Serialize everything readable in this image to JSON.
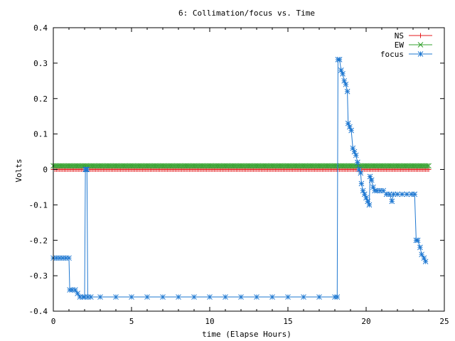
{
  "chart_data": {
    "type": "line",
    "title": "6: Collimation/focus vs. Time",
    "xlabel": "time (Elapse Hours)",
    "ylabel": "Volts",
    "xlim": [
      0,
      25
    ],
    "ylim": [
      -0.4,
      0.4
    ],
    "x_ticks": [
      0,
      5,
      10,
      15,
      20,
      25
    ],
    "x_tick_labels": [
      "0",
      "5",
      "10",
      "15",
      "20",
      "25"
    ],
    "y_ticks": [
      -0.4,
      -0.3,
      -0.2,
      -0.1,
      0,
      0.1,
      0.2,
      0.3,
      0.4
    ],
    "y_tick_labels": [
      "-0.4",
      "-0.3",
      "-0.2",
      "-0.1",
      "0",
      "0.1",
      "0.2",
      "0.3",
      "0.4"
    ],
    "grid": false,
    "legend_position": "top-right",
    "series": [
      {
        "name": "NS",
        "color": "#e41a1c",
        "marker": "plus",
        "x_start": 0,
        "x_end": 24,
        "x_step": 0.1,
        "constant_value": 0.0
      },
      {
        "name": "EW",
        "color": "#33a02c",
        "marker": "cross",
        "x_start": 0,
        "x_end": 24,
        "x_step": 0.1,
        "constant_value": 0.01
      },
      {
        "name": "focus",
        "color": "#1f78d1",
        "marker": "star",
        "points": [
          [
            0.0,
            -0.25
          ],
          [
            0.2,
            -0.25
          ],
          [
            0.4,
            -0.25
          ],
          [
            0.6,
            -0.25
          ],
          [
            0.8,
            -0.25
          ],
          [
            1.0,
            -0.25
          ],
          [
            1.05,
            -0.34
          ],
          [
            1.2,
            -0.34
          ],
          [
            1.4,
            -0.34
          ],
          [
            1.55,
            -0.35
          ],
          [
            1.7,
            -0.36
          ],
          [
            1.9,
            -0.36
          ],
          [
            2.0,
            -0.36
          ],
          [
            2.05,
            0.0
          ],
          [
            2.1,
            0.0
          ],
          [
            2.15,
            0.0
          ],
          [
            2.2,
            -0.36
          ],
          [
            2.4,
            -0.36
          ],
          [
            3.0,
            -0.36
          ],
          [
            4.0,
            -0.36
          ],
          [
            5.0,
            -0.36
          ],
          [
            6.0,
            -0.36
          ],
          [
            7.0,
            -0.36
          ],
          [
            8.0,
            -0.36
          ],
          [
            9.0,
            -0.36
          ],
          [
            10.0,
            -0.36
          ],
          [
            11.0,
            -0.36
          ],
          [
            12.0,
            -0.36
          ],
          [
            13.0,
            -0.36
          ],
          [
            14.0,
            -0.36
          ],
          [
            15.0,
            -0.36
          ],
          [
            16.0,
            -0.36
          ],
          [
            17.0,
            -0.36
          ],
          [
            18.0,
            -0.36
          ],
          [
            18.15,
            -0.36
          ],
          [
            18.2,
            0.31
          ],
          [
            18.3,
            0.31
          ],
          [
            18.4,
            0.28
          ],
          [
            18.5,
            0.27
          ],
          [
            18.6,
            0.25
          ],
          [
            18.7,
            0.24
          ],
          [
            18.8,
            0.22
          ],
          [
            18.85,
            0.13
          ],
          [
            18.95,
            0.12
          ],
          [
            19.05,
            0.11
          ],
          [
            19.15,
            0.06
          ],
          [
            19.25,
            0.05
          ],
          [
            19.35,
            0.04
          ],
          [
            19.45,
            0.02
          ],
          [
            19.55,
            0.0
          ],
          [
            19.65,
            -0.01
          ],
          [
            19.7,
            -0.04
          ],
          [
            19.8,
            -0.06
          ],
          [
            19.9,
            -0.07
          ],
          [
            20.0,
            -0.08
          ],
          [
            20.1,
            -0.09
          ],
          [
            20.2,
            -0.1
          ],
          [
            20.25,
            -0.02
          ],
          [
            20.35,
            -0.03
          ],
          [
            20.45,
            -0.05
          ],
          [
            20.55,
            -0.06
          ],
          [
            20.7,
            -0.06
          ],
          [
            20.9,
            -0.06
          ],
          [
            21.1,
            -0.06
          ],
          [
            21.3,
            -0.07
          ],
          [
            21.5,
            -0.07
          ],
          [
            21.65,
            -0.09
          ],
          [
            21.75,
            -0.07
          ],
          [
            22.0,
            -0.07
          ],
          [
            22.3,
            -0.07
          ],
          [
            22.6,
            -0.07
          ],
          [
            22.9,
            -0.07
          ],
          [
            23.1,
            -0.07
          ],
          [
            23.2,
            -0.2
          ],
          [
            23.3,
            -0.2
          ],
          [
            23.45,
            -0.22
          ],
          [
            23.55,
            -0.24
          ],
          [
            23.7,
            -0.25
          ],
          [
            23.8,
            -0.26
          ]
        ]
      }
    ]
  }
}
